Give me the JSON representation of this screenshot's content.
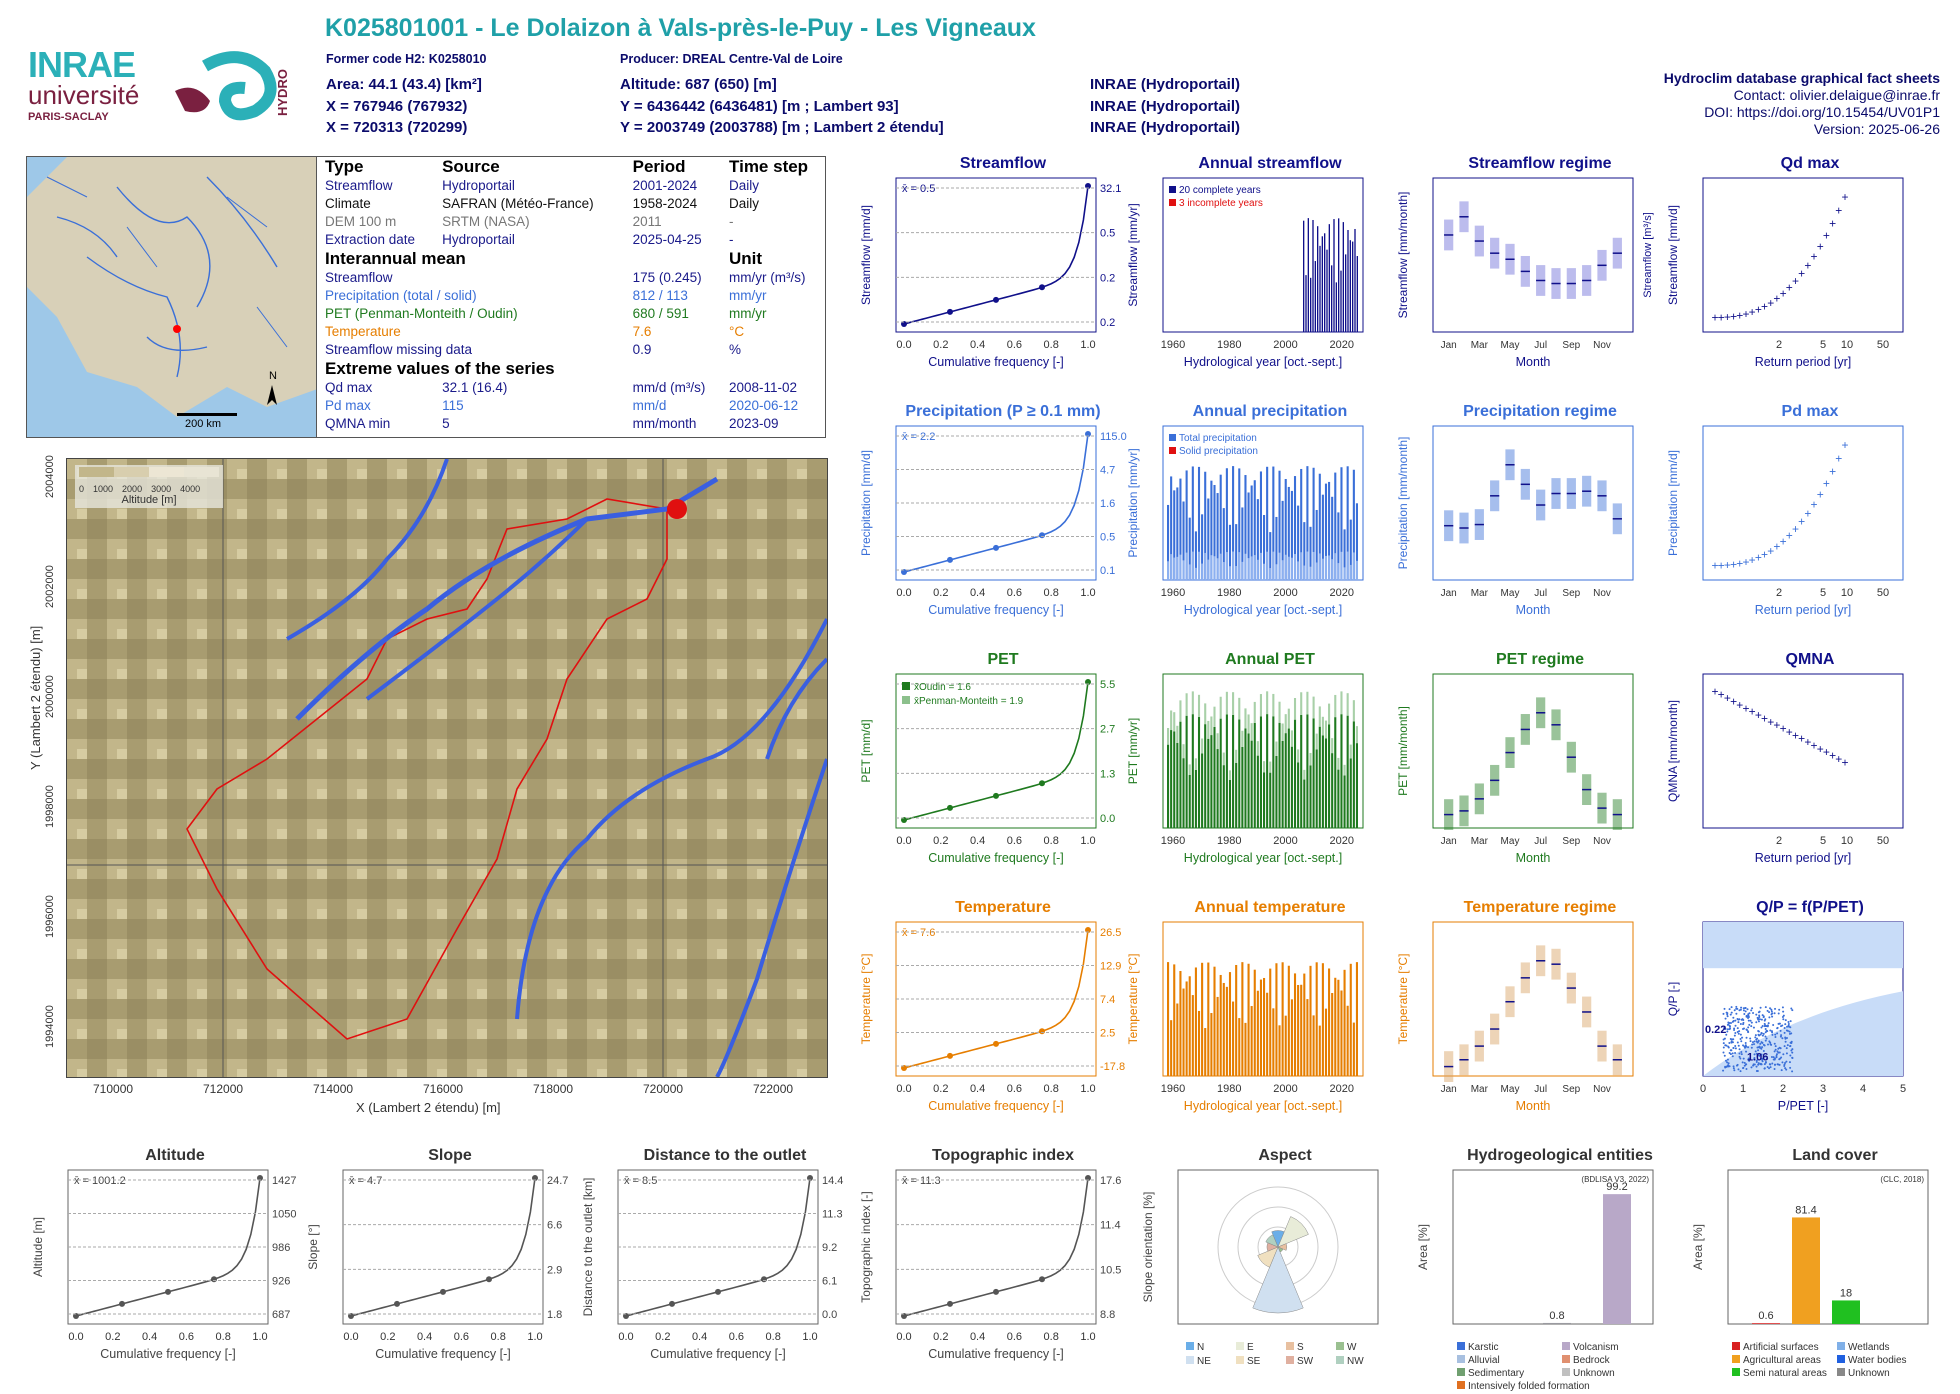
{
  "header": {
    "title": "K025801001 - Le Dolaizon à Vals-près-le-Puy - Les Vigneaux",
    "former_code": "Former code H2: K0258010",
    "producer": "Producer: DREAL Centre-Val de Loire",
    "area": "Area: 44.1 (43.4) [km²]",
    "altitude": "Altitude: 687 (650) [m]",
    "x93": "X = 767946 (767932)",
    "y93": "Y = 6436442 (6436481) [m ; Lambert 93]",
    "x2": "X = 720313 (720299)",
    "y2": "Y = 2003749 (2003788) [m ; Lambert 2 étendu]",
    "src1": "INRAE (Hydroportail)",
    "src2": "INRAE (Hydroportail)",
    "src3": "INRAE (Hydroportail)",
    "db": "Hydroclim database graphical fact sheets",
    "contact": "Contact: olivier.delaigue@inrae.fr",
    "doi": "DOI: https://doi.org/10.15454/UV01P1",
    "version": "Version: 2025-06-26"
  },
  "logos": {
    "inrae": "INRAE",
    "univ": "université",
    "paris": "PARIS-SACLAY",
    "hydro": "HYDRO"
  },
  "info": {
    "h_type": "Type",
    "h_source": "Source",
    "h_period": "Period",
    "h_step": "Time step",
    "rows": [
      {
        "type": "Streamflow",
        "source": "Hydroportail",
        "period": "2001-2024",
        "step": "Daily",
        "color": "#1a1a8a"
      },
      {
        "type": "Climate",
        "source": "SAFRAN (Météo-France)",
        "period": "1958-2024",
        "step": "Daily",
        "color": "#111"
      },
      {
        "type": "DEM 100 m",
        "source": "SRTM (NASA)",
        "period": "2011",
        "step": "-",
        "color": "#777"
      },
      {
        "type": "Extraction date",
        "source": "Hydroportail",
        "period": "2025-04-25",
        "step": "-",
        "color": "#1a1a8a"
      }
    ],
    "h_inter": "Interannual mean",
    "h_unit": "Unit",
    "inter": [
      {
        "name": "Streamflow",
        "val": "175 (0.245)",
        "unit": "mm/yr (m³/s)",
        "color": "#1a1a8a"
      },
      {
        "name": "Precipitation (total / solid)",
        "val": "812 / 113",
        "unit": "mm/yr",
        "color": "#3a6fd8"
      },
      {
        "name": "PET (Penman-Monteith / Oudin)",
        "val": "680 / 591",
        "unit": "mm/yr",
        "color": "#1f7a1f"
      },
      {
        "name": "Temperature",
        "val": "7.6",
        "unit": "°C",
        "color": "#e67e00"
      },
      {
        "name": "Streamflow missing data",
        "val": "0.9",
        "unit": "%",
        "color": "#1a1a8a"
      }
    ],
    "h_extreme": "Extreme values of the series",
    "extreme": [
      {
        "name": "Qd max",
        "val": "32.1 (16.4)",
        "unit": "mm/d (m³/s)",
        "date": "2008-11-02",
        "color": "#1a1a8a"
      },
      {
        "name": "Pd max",
        "val": "115",
        "unit": "mm/d",
        "date": "2020-06-12",
        "color": "#3a6fd8"
      },
      {
        "name": "QMNA min",
        "val": "5",
        "unit": "mm/month",
        "date": "2023-09",
        "color": "#1a1a8a"
      }
    ]
  },
  "minimap": {
    "scale": "200 km",
    "north": "N"
  },
  "map": {
    "xlabel": "X (Lambert 2 étendu) [m]",
    "ylabel": "Y (Lambert 2 étendu) [m]",
    "xticks": [
      "710000",
      "712000",
      "714000",
      "716000",
      "718000",
      "720000",
      "722000"
    ],
    "yticks": [
      "1994000",
      "1996000",
      "1998000",
      "2000000",
      "2002000",
      "2004000"
    ],
    "legend_title": "Altitude [m]",
    "legend_ticks": [
      "0",
      "1000",
      "2000",
      "3000",
      "4000"
    ]
  },
  "chart_data": [
    {
      "id": "streamflow_cdf",
      "type": "line",
      "title": "Streamflow",
      "xlabel": "Cumulative frequency [-]",
      "ylabel": "Streamflow [mm/d]",
      "mean_label": "x̄ = 0.5",
      "right_ticks": [
        "32.1",
        "0.5",
        "0.2",
        "0.2"
      ],
      "x": [
        0,
        0.25,
        0.5,
        0.75,
        1
      ],
      "y": [
        0.05,
        0.2,
        0.3,
        0.5,
        32.1
      ],
      "color": "#10108a"
    },
    {
      "id": "annual_streamflow",
      "type": "bar",
      "title": "Annual streamflow",
      "xlabel": "Hydrological year [oct.-sept.]",
      "ylabel": "Streamflow [mm/yr]",
      "legend": [
        "20 complete years",
        "3 incomplete years"
      ],
      "ylim": [
        0,
        700
      ],
      "color": "#10108a"
    },
    {
      "id": "streamflow_regime",
      "type": "box",
      "title": "Streamflow regime",
      "xlabel": "Month",
      "ylabel": "Streamflow [mm/month]",
      "ylabel2": "Streamflow [m³/s]",
      "months": [
        "Jan",
        "Feb",
        "Mar",
        "Apr",
        "May",
        "Jun",
        "Jul",
        "Aug",
        "Sep",
        "Oct",
        "Nov",
        "Dec"
      ],
      "median": [
        15,
        18,
        14,
        12,
        11,
        9,
        7.5,
        7,
        7,
        7.5,
        10,
        12
      ],
      "color": "#6a6ad8"
    },
    {
      "id": "qd_max",
      "type": "scatter",
      "title": "Qd max",
      "xlabel": "Return period [yr]",
      "ylabel": "Streamflow [mm/d]",
      "color": "#10108a"
    },
    {
      "id": "precip_cdf",
      "type": "line",
      "title": "Precipitation (P ≥ 0.1 mm)",
      "xlabel": "Cumulative frequency [-]",
      "ylabel": "Precipitation [mm/d]",
      "mean_label": "x̄ = 2.2",
      "right_ticks": [
        "115.0",
        "4.7",
        "1.6",
        "0.5",
        "0.1"
      ],
      "color": "#3a6fd8"
    },
    {
      "id": "annual_precip",
      "type": "bar",
      "title": "Annual precipitation",
      "xlabel": "Hydrological year [oct.-sept.]",
      "ylabel": "Precipitation [mm/yr]",
      "legend": [
        "Total precipitation",
        "Solid precipitation"
      ],
      "color": "#3a6fd8"
    },
    {
      "id": "precip_regime",
      "type": "box",
      "title": "Precipitation regime",
      "xlabel": "Month",
      "ylabel": "Precipitation [mm/month]",
      "months": [
        "Jan",
        "Feb",
        "Mar",
        "Apr",
        "May",
        "Jun",
        "Jul",
        "Aug",
        "Sep",
        "Oct",
        "Nov",
        "Dec"
      ],
      "median": [
        42,
        40,
        43,
        68,
        95,
        78,
        60,
        70,
        70,
        72,
        68,
        48
      ],
      "color": "#3a6fd8"
    },
    {
      "id": "pd_max",
      "type": "scatter",
      "title": "Pd max",
      "xlabel": "Return period [yr]",
      "ylabel": "Precipitation [mm/d]",
      "color": "#3a6fd8"
    },
    {
      "id": "pet_cdf",
      "type": "line",
      "title": "PET",
      "xlabel": "Cumulative frequency [-]",
      "ylabel": "PET [mm/d]",
      "legend": [
        "x̄Oudin = 1.6",
        "x̄Penman-Monteith = 1.9"
      ],
      "right_ticks": [
        "5.5",
        "2.7",
        "1.3",
        "0.0"
      ],
      "color": "#1f7a1f"
    },
    {
      "id": "annual_pet",
      "type": "bar",
      "title": "Annual PET",
      "xlabel": "Hydrological year [oct.-sept.]",
      "ylabel": "PET [mm/yr]",
      "color": "#1f7a1f"
    },
    {
      "id": "pet_regime",
      "type": "box",
      "title": "PET regime",
      "xlabel": "Month",
      "ylabel": "PET [mm/month]",
      "months": [
        "Jan",
        "Feb",
        "Mar",
        "Apr",
        "May",
        "Jun",
        "Jul",
        "Aug",
        "Sep",
        "Oct",
        "Nov",
        "Dec"
      ],
      "median": [
        8,
        12,
        25,
        45,
        75,
        100,
        118,
        105,
        70,
        35,
        15,
        8
      ],
      "color": "#1f7a1f"
    },
    {
      "id": "qmna",
      "type": "scatter",
      "title": "QMNA",
      "xlabel": "Return period [yr]",
      "ylabel": "QMNA [mm/month]",
      "color": "#10108a"
    },
    {
      "id": "temp_cdf",
      "type": "line",
      "title": "Temperature",
      "xlabel": "Cumulative frequency [-]",
      "ylabel": "Temperature [°C]",
      "mean_label": "x̄ = 7.6",
      "right_ticks": [
        "26.5",
        "12.9",
        "7.4",
        "2.5",
        "-17.8"
      ],
      "color": "#e67e00"
    },
    {
      "id": "annual_temp",
      "type": "bar",
      "title": "Annual temperature",
      "xlabel": "Hydrological year [oct.-sept.]",
      "ylabel": "Temperature [°C]",
      "color": "#e67e00"
    },
    {
      "id": "temp_regime",
      "type": "box",
      "title": "Temperature regime",
      "xlabel": "Month",
      "ylabel": "Temperature [°C]",
      "months": [
        "Jan",
        "Feb",
        "Mar",
        "Apr",
        "May",
        "Jun",
        "Jul",
        "Aug",
        "Sep",
        "Oct",
        "Nov",
        "Dec"
      ],
      "median": [
        0.5,
        1.5,
        3.5,
        6,
        10,
        13.5,
        16,
        15.5,
        12,
        8.5,
        3.5,
        1.5
      ],
      "color": "#d8a060"
    },
    {
      "id": "qp",
      "type": "scatter",
      "title": "Q/P = f(P/PET)",
      "xlabel": "P/PET [-]",
      "ylabel": "Q/P [-]",
      "labels": [
        "0.22",
        "1.06"
      ],
      "color": "#3a6fd8"
    },
    {
      "id": "altitude",
      "type": "line",
      "title": "Altitude",
      "xlabel": "Cumulative frequency [-]",
      "ylabel": "Altitude [m]",
      "mean_label": "x̄ = 1001.2",
      "right_ticks": [
        "1427",
        "1050",
        "986",
        "926",
        "687"
      ]
    },
    {
      "id": "slope",
      "type": "line",
      "title": "Slope",
      "xlabel": "Cumulative frequency [-]",
      "ylabel": "Slope [°]",
      "mean_label": "x̄ = 4.7",
      "right_ticks": [
        "24.7",
        "6.6",
        "2.9",
        "1.8"
      ]
    },
    {
      "id": "distance",
      "type": "line",
      "title": "Distance to the outlet",
      "xlabel": "Cumulative frequency [-]",
      "ylabel": "Distance to the outlet [km]",
      "mean_label": "x̄ = 8.5",
      "right_ticks": [
        "14.4",
        "11.3",
        "9.2",
        "6.1",
        "0.0"
      ]
    },
    {
      "id": "topo",
      "type": "line",
      "title": "Topographic index",
      "xlabel": "Cumulative frequency [-]",
      "ylabel": "Topographic index [-]",
      "mean_label": "x̄ = 11.3",
      "right_ticks": [
        "17.6",
        "11.4",
        "10.5",
        "8.8"
      ]
    },
    {
      "id": "aspect",
      "type": "pie",
      "title": "Aspect",
      "ylabel": "Slope orientation [%]",
      "legend": [
        "N",
        "E",
        "S",
        "W",
        "NE",
        "SE",
        "SW",
        "NW"
      ]
    },
    {
      "id": "hydrogeo",
      "type": "bar",
      "title": "Hydrogeological entities",
      "ylabel": "Area [%]",
      "source": "(BDLISA V3, 2022)",
      "values": [
        0.8,
        99.2
      ],
      "legend": [
        "Karstic",
        "Volcanism",
        "Alluvial",
        "Bedrock",
        "Sedimentary",
        "Unknown",
        "Intensively folded formation"
      ]
    },
    {
      "id": "landcover",
      "type": "bar",
      "title": "Land cover",
      "ylabel": "Area [%]",
      "source": "(CLC, 2018)",
      "values": [
        0.6,
        81.4,
        18
      ],
      "legend": [
        "Artificial surfaces",
        "Wetlands",
        "Agricultural areas",
        "Water bodies",
        "Semi natural areas",
        "Unknown"
      ]
    }
  ]
}
